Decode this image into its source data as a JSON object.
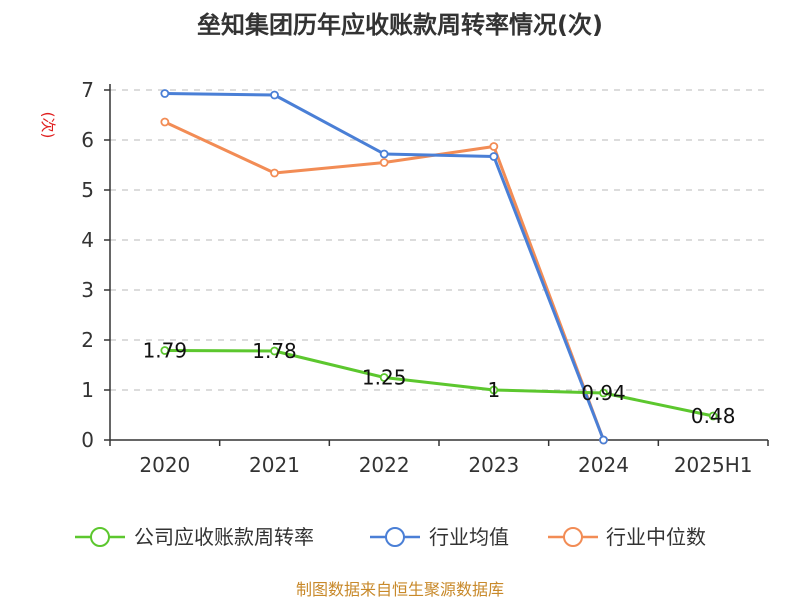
{
  "chart_data": {
    "type": "line",
    "title": "垒知集团历年应收账款周转率情况(次)",
    "ylabel": "(次)",
    "xlabel": "",
    "categories": [
      "2020",
      "2021",
      "2022",
      "2023",
      "2024",
      "2025H1"
    ],
    "ylim": [
      0,
      7
    ],
    "yticks": [
      0,
      1,
      2,
      3,
      4,
      5,
      6,
      7
    ],
    "grid": true,
    "legend_position": "bottom",
    "series": [
      {
        "name": "公司应收账款周转率",
        "color": "#5cc72e",
        "values": [
          1.79,
          1.78,
          1.25,
          1,
          0.94,
          0.48
        ],
        "labels": [
          "1.79",
          "1.78",
          "1.25",
          "1",
          "0.94",
          "0.48"
        ]
      },
      {
        "name": "行业均值",
        "color": "#4a7fd6",
        "values": [
          6.93,
          6.9,
          5.72,
          5.67,
          0,
          null
        ]
      },
      {
        "name": "行业中位数",
        "color": "#f28c55",
        "values": [
          6.36,
          5.34,
          5.55,
          5.87,
          0,
          null
        ]
      }
    ]
  },
  "source": "制图数据来自恒生聚源数据库"
}
